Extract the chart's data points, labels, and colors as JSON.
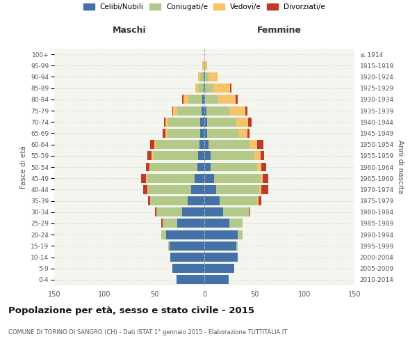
{
  "age_groups": [
    "0-4",
    "5-9",
    "10-14",
    "15-19",
    "20-24",
    "25-29",
    "30-34",
    "35-39",
    "40-44",
    "45-49",
    "50-54",
    "55-59",
    "60-64",
    "65-69",
    "70-74",
    "75-79",
    "80-84",
    "85-89",
    "90-94",
    "95-99",
    "100+"
  ],
  "birth_years": [
    "2010-2014",
    "2005-2009",
    "2000-2004",
    "1995-1999",
    "1990-1994",
    "1985-1989",
    "1980-1984",
    "1975-1979",
    "1970-1974",
    "1965-1969",
    "1960-1964",
    "1955-1959",
    "1950-1954",
    "1945-1949",
    "1940-1944",
    "1935-1939",
    "1930-1934",
    "1925-1929",
    "1920-1924",
    "1915-1919",
    "≤ 1914"
  ],
  "maschi": {
    "celibi": [
      28,
      32,
      34,
      35,
      38,
      27,
      22,
      17,
      13,
      10,
      7,
      6,
      5,
      4,
      4,
      3,
      2,
      1,
      1,
      0,
      0
    ],
    "coniugati": [
      0,
      0,
      0,
      1,
      5,
      15,
      26,
      37,
      43,
      47,
      47,
      45,
      43,
      33,
      32,
      24,
      14,
      5,
      3,
      1,
      0
    ],
    "vedovi": [
      0,
      0,
      0,
      0,
      0,
      0,
      0,
      0,
      1,
      1,
      1,
      2,
      2,
      2,
      3,
      4,
      5,
      3,
      2,
      1,
      0
    ],
    "divorziati": [
      0,
      0,
      0,
      0,
      0,
      1,
      1,
      2,
      4,
      5,
      3,
      4,
      4,
      3,
      1,
      1,
      1,
      0,
      0,
      0,
      0
    ]
  },
  "femmine": {
    "nubili": [
      24,
      30,
      33,
      32,
      33,
      25,
      19,
      15,
      12,
      10,
      6,
      6,
      4,
      3,
      3,
      2,
      1,
      1,
      1,
      0,
      0
    ],
    "coniugate": [
      0,
      0,
      0,
      1,
      5,
      13,
      26,
      38,
      43,
      46,
      47,
      44,
      41,
      31,
      29,
      23,
      13,
      7,
      3,
      1,
      0
    ],
    "vedove": [
      0,
      0,
      0,
      0,
      0,
      0,
      0,
      1,
      2,
      2,
      4,
      6,
      8,
      9,
      12,
      16,
      17,
      18,
      9,
      2,
      0
    ],
    "divorziate": [
      0,
      0,
      0,
      0,
      0,
      0,
      1,
      3,
      7,
      6,
      5,
      4,
      6,
      2,
      3,
      2,
      2,
      1,
      0,
      0,
      0
    ]
  },
  "colors": {
    "celibi": "#4472a8",
    "coniugati": "#b3c98a",
    "vedovi": "#f5c46a",
    "divorziati": "#c0392b"
  },
  "xlim": 150,
  "title": "Popolazione per età, sesso e stato civile - 2015",
  "subtitle": "COMUNE DI TORINO DI SANGRO (CH) - Dati ISTAT 1° gennaio 2015 - Elaborazione TUTTITALIA.IT",
  "ylabel_left": "Fasce di età",
  "ylabel_right": "Anni di nascita",
  "legend_labels": [
    "Celibi/Nubili",
    "Coniugati/e",
    "Vedovi/e",
    "Divorziati/e"
  ],
  "maschi_label": "Maschi",
  "femmine_label": "Femmine",
  "bg_color": "#f5f5f0"
}
